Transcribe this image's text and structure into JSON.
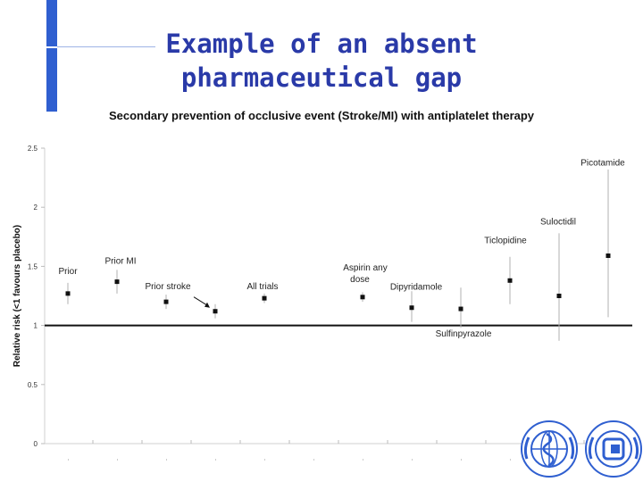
{
  "slide": {
    "title_line1": "Example of an absent",
    "title_line2": "pharmaceutical gap",
    "accent_color": "#2f5fd0",
    "title_color": "#2a3aa8"
  },
  "chart_data": {
    "type": "scatter",
    "title": "Secondary prevention of occlusive event (Stroke/MI) with antiplatelet therapy",
    "xlabel": "",
    "ylabel": "Relative risk (<1 favours placebo)",
    "ylim": [
      0,
      2.5
    ],
    "yticks": [
      "0",
      "0.5",
      "1",
      "1.5",
      "2",
      "2.5"
    ],
    "reference_line": 1,
    "grid": false,
    "points": [
      {
        "label": "Prior",
        "label2": "",
        "y": 1.27,
        "low": 1.18,
        "high": 1.36
      },
      {
        "label": "Prior MI",
        "label2": "",
        "y": 1.37,
        "low": 1.27,
        "high": 1.47
      },
      {
        "label": "Prior stroke",
        "label2": "",
        "y": 1.2,
        "low": 1.14,
        "high": 1.26
      },
      {
        "label": "",
        "label2": "",
        "y": 1.12,
        "low": 1.06,
        "high": 1.18
      },
      {
        "label": "All trials",
        "label2": "",
        "y": 1.23,
        "low": 1.19,
        "high": 1.27
      },
      {
        "label": "",
        "label2": "",
        "y": null,
        "low": null,
        "high": null
      },
      {
        "label": "Aspirin any",
        "label2": "dose",
        "y": 1.24,
        "low": 1.2,
        "high": 1.28
      },
      {
        "label": "Dipyridamole",
        "label2": "",
        "y": 1.15,
        "low": 1.03,
        "high": 1.29
      },
      {
        "label": "Sulfinpyrazole",
        "label2": "",
        "y": 1.14,
        "low": 0.98,
        "high": 1.32
      },
      {
        "label": "Ticlopidine",
        "label2": "",
        "y": 1.38,
        "low": 1.18,
        "high": 1.58
      },
      {
        "label": "Suloctidil",
        "label2": "",
        "y": 1.25,
        "low": 0.87,
        "high": 1.78
      },
      {
        "label": "Picotamide",
        "label2": "",
        "y": 1.59,
        "low": 1.07,
        "high": 2.32
      }
    ]
  },
  "logos": {
    "left": "who-emblem-icon",
    "right": "fip-emblem-icon"
  }
}
